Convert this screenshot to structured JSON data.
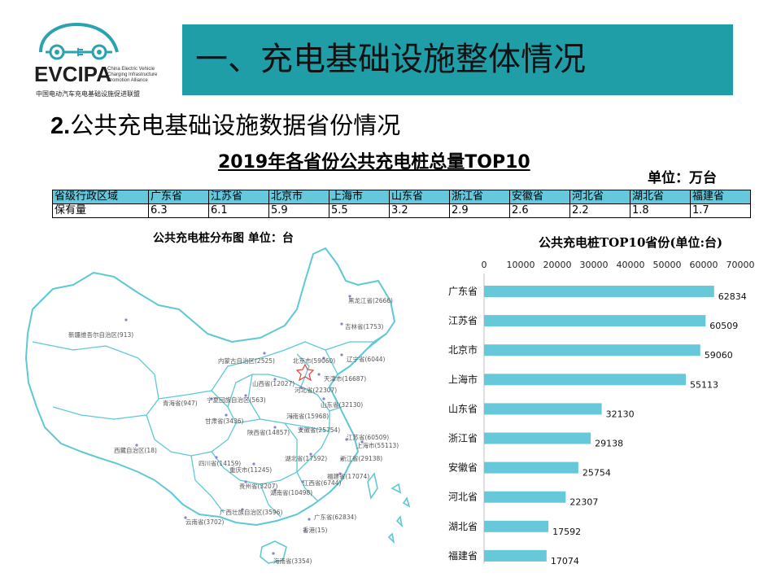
{
  "logo": {
    "brand": "EVCIPA",
    "english_lines": [
      "China Electric Vehicle",
      "Charging Infrastructure",
      "Promotion Alliance"
    ],
    "chinese_name": "中国电动汽车充电基础设施促进联盟",
    "color": "#2aa3b0"
  },
  "banner": {
    "title": "一、充电基础设施整体情况",
    "color": "#1f9ea8"
  },
  "subtitle": {
    "number": "2.",
    "text": "公共充电基础设施数据省份情况"
  },
  "table_section": {
    "title": "2019年各省份公共充电桩总量TOP10",
    "unit": "单位：万台",
    "header_label": "省级行政区域",
    "row_label": "保有量",
    "provinces": [
      "广东省",
      "江苏省",
      "北京市",
      "上海市",
      "山东省",
      "浙江省",
      "安徽省",
      "河北省",
      "湖北省",
      "福建省"
    ],
    "values": [
      "6.3",
      "6.1",
      "5.9",
      "5.5",
      "3.2",
      "2.9",
      "2.6",
      "2.2",
      "1.8",
      "1.7"
    ],
    "header_color": "#66c8dc"
  },
  "map": {
    "title": "公共充电桩分布图   单位：台",
    "line_color": "#5ec8d6",
    "labels": [
      "黑龙江省(2666)",
      "吉林省(1753)",
      "新疆维吾尔自治区(913)",
      "内蒙古自治区(2525)",
      "北京市(59060)",
      "辽宁省(6044)",
      "天津市(16687)",
      "山西省(12027)",
      "河北省(22307)",
      "宁夏回族自治区(563)",
      "山东省(32130)",
      "青海省(947)",
      "甘肃省(3436)",
      "河南省(15968)",
      "陕西省(14857)",
      "安徽省(25754)",
      "江苏省(60509)",
      "上海市(55113)",
      "西藏自治区(18)",
      "湖北省(17592)",
      "浙江省(29138)",
      "四川省(14159)",
      "重庆市(11245)",
      "福建省(17074)",
      "贵州省(3207)",
      "江西省(6744)",
      "湖南省(10498)",
      "广西壮族自治区(3596)",
      "广东省(62834)",
      "云南省(3702)",
      "香港(15)",
      "海南省(3354)"
    ]
  },
  "chart_data": {
    "type": "bar",
    "orientation": "horizontal",
    "title": "公共充电桩TOP10省份(单位:台)",
    "categories": [
      "广东省",
      "江苏省",
      "北京市",
      "上海市",
      "山东省",
      "浙江省",
      "安徽省",
      "河北省",
      "湖北省",
      "福建省"
    ],
    "values": [
      62834,
      60509,
      59060,
      55113,
      32130,
      29138,
      25754,
      22307,
      17592,
      17074
    ],
    "xlim": [
      0,
      70000
    ],
    "x_ticks": [
      0,
      10000,
      20000,
      30000,
      40000,
      50000,
      60000,
      70000
    ],
    "axis_position": "top",
    "grid": false,
    "legend": "none",
    "bar_color": "#66c8d8"
  }
}
